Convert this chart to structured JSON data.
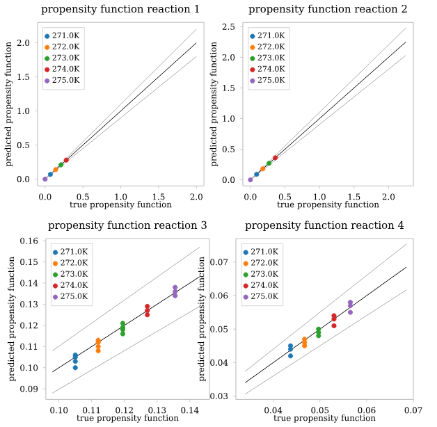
{
  "chart_data": [
    {
      "type": "scatter",
      "title": "propensity function reaction 1",
      "xlabel": "true propensity function",
      "ylabel": "predicted propensity function",
      "xlim": [
        -0.1,
        2.1
      ],
      "ylim": [
        -0.1,
        2.3
      ],
      "xticks": [
        {
          "value": 0,
          "label": "0.0"
        },
        {
          "value": 0.5,
          "label": "0.5"
        },
        {
          "value": 1,
          "label": "1.0"
        },
        {
          "value": 1.5,
          "label": "1.5"
        },
        {
          "value": 2,
          "label": "2.0"
        }
      ],
      "yticks": [
        {
          "value": 0,
          "label": "0.0"
        },
        {
          "value": 0.5,
          "label": "0.5"
        },
        {
          "value": 1,
          "label": "1.0"
        },
        {
          "value": 1.5,
          "label": "1.5"
        },
        {
          "value": 2,
          "label": "2.0"
        }
      ],
      "legend": "top left",
      "series": [
        {
          "name": "271.0K",
          "color": "#1f77b4",
          "x": [
            0.07
          ],
          "values": [
            0.07
          ]
        },
        {
          "name": "272.0K",
          "color": "#ff7f0e",
          "x": [
            0.14
          ],
          "values": [
            0.14
          ]
        },
        {
          "name": "273.0K",
          "color": "#2ca02c",
          "x": [
            0.21
          ],
          "values": [
            0.21
          ]
        },
        {
          "name": "274.0K",
          "color": "#d62728",
          "x": [
            0.28
          ],
          "values": [
            0.28
          ]
        },
        {
          "name": "275.0K",
          "color": "#9467bd",
          "x": [
            0.0
          ],
          "values": [
            0.0
          ]
        },
        {
          "type": "line",
          "color": "#000000",
          "x": [
            0,
            2
          ],
          "values": [
            0,
            2
          ]
        },
        {
          "type": "line",
          "color": "#aaaaaa",
          "x": [
            0,
            2
          ],
          "values": [
            0,
            2.2
          ]
        },
        {
          "type": "line",
          "color": "#aaaaaa",
          "x": [
            0,
            2
          ],
          "values": [
            0,
            1.8
          ]
        }
      ]
    },
    {
      "type": "scatter",
      "title": "propensity function reaction 2",
      "xlabel": "true propensity function",
      "ylabel": "predicted propensity function",
      "xlim": [
        -0.11,
        2.36
      ],
      "ylim": [
        -0.1,
        2.57
      ],
      "xticks": [
        {
          "value": 0,
          "label": "0.0"
        },
        {
          "value": 0.5,
          "label": "0.5"
        },
        {
          "value": 1,
          "label": "1.0"
        },
        {
          "value": 1.5,
          "label": "1.5"
        },
        {
          "value": 2,
          "label": "2.0"
        }
      ],
      "yticks": [
        {
          "value": 0,
          "label": "0.0"
        },
        {
          "value": 0.5,
          "label": "0.5"
        },
        {
          "value": 1,
          "label": "1.0"
        },
        {
          "value": 1.5,
          "label": "1.5"
        },
        {
          "value": 2,
          "label": "2.0"
        },
        {
          "value": 2.5,
          "label": "2.5"
        }
      ],
      "legend": "top left",
      "series": [
        {
          "name": "271.0K",
          "color": "#1f77b4",
          "x": [
            0.09
          ],
          "values": [
            0.09
          ]
        },
        {
          "name": "272.0K",
          "color": "#ff7f0e",
          "x": [
            0.18
          ],
          "values": [
            0.18
          ]
        },
        {
          "name": "273.0K",
          "color": "#2ca02c",
          "x": [
            0.27
          ],
          "values": [
            0.27
          ]
        },
        {
          "name": "274.0K",
          "color": "#d62728",
          "x": [
            0.36
          ],
          "values": [
            0.36
          ]
        },
        {
          "name": "275.0K",
          "color": "#9467bd",
          "x": [
            0.0
          ],
          "values": [
            0.0
          ]
        },
        {
          "type": "line",
          "color": "#000000",
          "x": [
            0,
            2.25
          ],
          "values": [
            0,
            2.25
          ]
        },
        {
          "type": "line",
          "color": "#aaaaaa",
          "x": [
            0,
            2.25
          ],
          "values": [
            0,
            2.48
          ]
        },
        {
          "type": "line",
          "color": "#aaaaaa",
          "x": [
            0,
            2.25
          ],
          "values": [
            0,
            2.03
          ]
        }
      ]
    },
    {
      "type": "scatter",
      "title": "propensity function reaction 3",
      "xlabel": "true propensity function",
      "ylabel": "predicted propensity function",
      "xlim": [
        0.096,
        0.146
      ],
      "ylim": [
        0.085,
        0.161
      ],
      "xticks": [
        {
          "value": 0.1,
          "label": "0.10"
        },
        {
          "value": 0.11,
          "label": "0.11"
        },
        {
          "value": 0.12,
          "label": "0.12"
        },
        {
          "value": 0.13,
          "label": "0.13"
        },
        {
          "value": 0.14,
          "label": "0.14"
        }
      ],
      "yticks": [
        {
          "value": 0.09,
          "label": "0.09"
        },
        {
          "value": 0.1,
          "label": "0.10"
        },
        {
          "value": 0.11,
          "label": "0.11"
        },
        {
          "value": 0.12,
          "label": "0.12"
        },
        {
          "value": 0.13,
          "label": "0.13"
        },
        {
          "value": 0.14,
          "label": "0.14"
        },
        {
          "value": 0.15,
          "label": "0.15"
        },
        {
          "value": 0.16,
          "label": "0.16"
        }
      ],
      "legend": "top left",
      "series": [
        {
          "name": "271.0K",
          "color": "#1f77b4",
          "x": [
            0.105,
            0.105,
            0.105,
            0.105
          ],
          "values": [
            0.1,
            0.103,
            0.105,
            0.106
          ]
        },
        {
          "name": "272.0K",
          "color": "#ff7f0e",
          "x": [
            0.112,
            0.112,
            0.112,
            0.112
          ],
          "values": [
            0.108,
            0.11,
            0.112,
            0.113
          ]
        },
        {
          "name": "273.0K",
          "color": "#2ca02c",
          "x": [
            0.1195,
            0.1195,
            0.1195,
            0.1195
          ],
          "values": [
            0.116,
            0.118,
            0.119,
            0.121
          ]
        },
        {
          "name": "274.0K",
          "color": "#d62728",
          "x": [
            0.127,
            0.127,
            0.127
          ],
          "values": [
            0.125,
            0.127,
            0.129
          ]
        },
        {
          "name": "275.0K",
          "color": "#9467bd",
          "x": [
            0.1355,
            0.1355,
            0.1355
          ],
          "values": [
            0.134,
            0.136,
            0.138
          ]
        },
        {
          "type": "line",
          "color": "#000000",
          "x": [
            0.098,
            0.143
          ],
          "values": [
            0.098,
            0.143
          ]
        },
        {
          "type": "line",
          "color": "#aaaaaa",
          "x": [
            0.098,
            0.143
          ],
          "values": [
            0.108,
            0.157
          ]
        },
        {
          "type": "line",
          "color": "#aaaaaa",
          "x": [
            0.098,
            0.143
          ],
          "values": [
            0.088,
            0.129
          ]
        }
      ]
    },
    {
      "type": "scatter",
      "title": "propensity function reaction 4",
      "xlabel": "true propensity function",
      "ylabel": "predicted propensity function",
      "xlim": [
        0.032,
        0.07
      ],
      "ylim": [
        0.029,
        0.077
      ],
      "xticks": [
        {
          "value": 0.04,
          "label": "0.04"
        },
        {
          "value": 0.05,
          "label": "0.05"
        },
        {
          "value": 0.06,
          "label": "0.06"
        },
        {
          "value": 0.07,
          "label": "0.07"
        }
      ],
      "yticks": [
        {
          "value": 0.03,
          "label": "0.03"
        },
        {
          "value": 0.04,
          "label": "0.04"
        },
        {
          "value": 0.05,
          "label": "0.05"
        },
        {
          "value": 0.06,
          "label": "0.06"
        },
        {
          "value": 0.07,
          "label": "0.07"
        }
      ],
      "legend": "top left",
      "series": [
        {
          "name": "271.0K",
          "color": "#1f77b4",
          "x": [
            0.0437,
            0.0437,
            0.0437
          ],
          "values": [
            0.042,
            0.044,
            0.045
          ]
        },
        {
          "name": "272.0K",
          "color": "#ff7f0e",
          "x": [
            0.0467,
            0.0467,
            0.0467
          ],
          "values": [
            0.045,
            0.046,
            0.047
          ]
        },
        {
          "name": "273.0K",
          "color": "#2ca02c",
          "x": [
            0.0497,
            0.0497,
            0.0497
          ],
          "values": [
            0.048,
            0.049,
            0.05
          ]
        },
        {
          "name": "274.0K",
          "color": "#d62728",
          "x": [
            0.053,
            0.053,
            0.053
          ],
          "values": [
            0.051,
            0.053,
            0.054
          ]
        },
        {
          "name": "275.0K",
          "color": "#9467bd",
          "x": [
            0.0565,
            0.0565,
            0.0565
          ],
          "values": [
            0.055,
            0.057,
            0.058
          ]
        },
        {
          "type": "line",
          "color": "#000000",
          "x": [
            0.034,
            0.0685
          ],
          "values": [
            0.034,
            0.0685
          ]
        },
        {
          "type": "line",
          "color": "#aaaaaa",
          "x": [
            0.034,
            0.0685
          ],
          "values": [
            0.0374,
            0.0754
          ]
        },
        {
          "type": "line",
          "color": "#aaaaaa",
          "x": [
            0.034,
            0.0685
          ],
          "values": [
            0.0306,
            0.0617
          ]
        }
      ]
    }
  ]
}
